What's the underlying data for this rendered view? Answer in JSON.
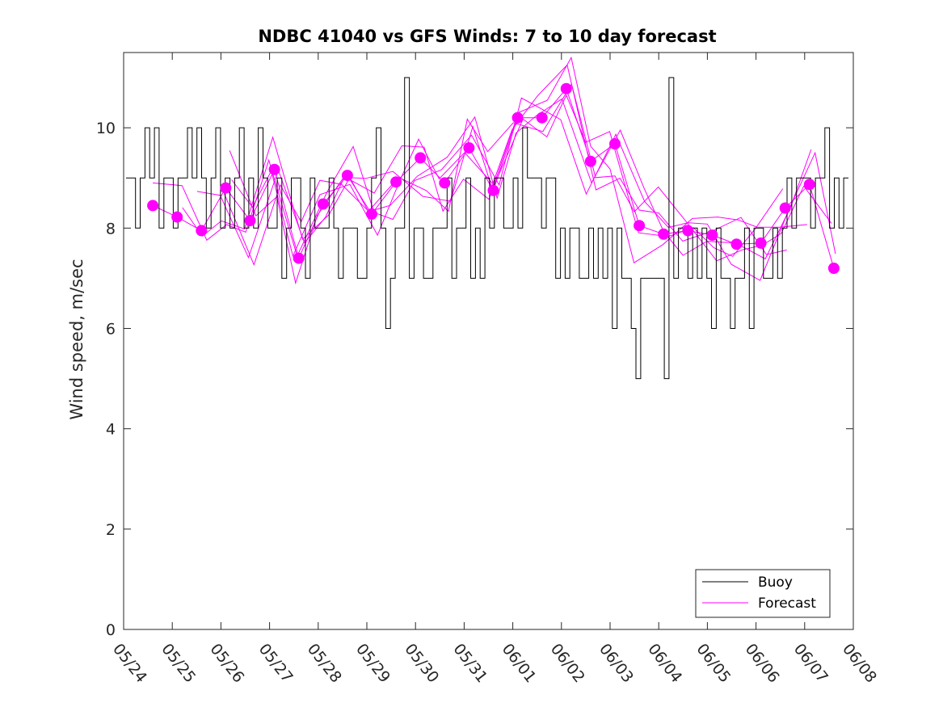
{
  "chart_data": {
    "type": "line",
    "title": "NDBC 41040 vs GFS Winds: 7 to 10 day forecast",
    "xlabel": "",
    "ylabel": "Wind speed, m/sec",
    "x_tick_labels": [
      "05/24",
      "05/25",
      "05/26",
      "05/27",
      "05/28",
      "05/29",
      "05/30",
      "05/31",
      "06/01",
      "06/02",
      "06/03",
      "06/04",
      "06/05",
      "06/06",
      "06/07",
      "06/08"
    ],
    "xlim_days": [
      0,
      15
    ],
    "y_ticks": [
      0,
      2,
      4,
      6,
      8,
      10
    ],
    "ylim": [
      0,
      11.5
    ],
    "grid": false,
    "legend": {
      "placement": "bottom-right",
      "entries": [
        "Buoy",
        "Forecast"
      ]
    },
    "colors": {
      "buoy": "#000000",
      "forecast": "#ff00ff",
      "axes": "#262626"
    },
    "series": [
      {
        "name": "Buoy",
        "values": [
          9,
          9,
          8,
          9,
          10,
          9,
          10,
          8,
          9,
          9,
          8,
          9,
          9,
          10,
          9,
          10,
          9,
          8,
          9,
          10,
          8,
          9,
          8,
          9,
          10,
          8,
          9,
          8,
          10,
          9,
          8,
          8,
          9,
          7,
          8,
          9,
          9,
          8,
          7,
          9,
          8,
          8,
          8,
          9,
          8,
          7,
          8,
          8,
          8,
          7,
          7,
          8,
          9,
          10,
          8,
          6,
          7,
          8,
          8,
          11,
          7,
          8,
          8,
          7,
          7,
          8,
          8,
          8,
          9,
          7,
          8,
          8,
          9,
          7,
          8,
          7,
          9,
          8,
          9,
          9,
          8,
          8,
          9,
          8,
          10,
          9,
          9,
          9,
          8,
          9,
          9,
          7,
          8,
          7,
          8,
          8,
          7,
          7,
          8,
          7,
          8,
          7,
          8,
          6,
          8,
          7,
          7,
          6,
          5,
          7,
          7,
          7,
          7,
          7,
          5,
          11,
          7,
          8,
          8,
          7,
          8,
          7,
          8,
          7,
          6,
          8,
          7,
          7,
          6,
          7,
          7,
          8,
          6,
          8,
          8,
          7,
          7,
          8,
          7,
          8,
          9,
          8,
          9,
          9,
          9,
          8,
          9,
          9,
          10,
          8,
          9,
          8,
          9
        ]
      },
      {
        "name": "Forecast",
        "points": [
          [
            0.6,
            8.45
          ],
          [
            1.1,
            8.22
          ],
          [
            1.6,
            7.95
          ],
          [
            2.1,
            8.8
          ],
          [
            2.6,
            8.15
          ],
          [
            3.1,
            9.17
          ],
          [
            3.6,
            7.4
          ],
          [
            4.1,
            8.48
          ],
          [
            4.6,
            9.05
          ],
          [
            5.1,
            8.28
          ],
          [
            5.6,
            8.92
          ],
          [
            6.1,
            9.4
          ],
          [
            6.6,
            8.9
          ],
          [
            7.1,
            9.6
          ],
          [
            7.6,
            8.75
          ],
          [
            8.1,
            10.2
          ],
          [
            8.6,
            10.2
          ],
          [
            9.1,
            10.78
          ],
          [
            9.6,
            9.33
          ],
          [
            10.1,
            9.68
          ],
          [
            10.6,
            8.05
          ],
          [
            11.1,
            7.88
          ],
          [
            11.6,
            7.95
          ],
          [
            12.1,
            7.86
          ],
          [
            12.6,
            7.68
          ],
          [
            13.1,
            7.7
          ],
          [
            13.6,
            8.4
          ],
          [
            14.1,
            8.87
          ],
          [
            14.6,
            7.2
          ]
        ]
      }
    ]
  }
}
